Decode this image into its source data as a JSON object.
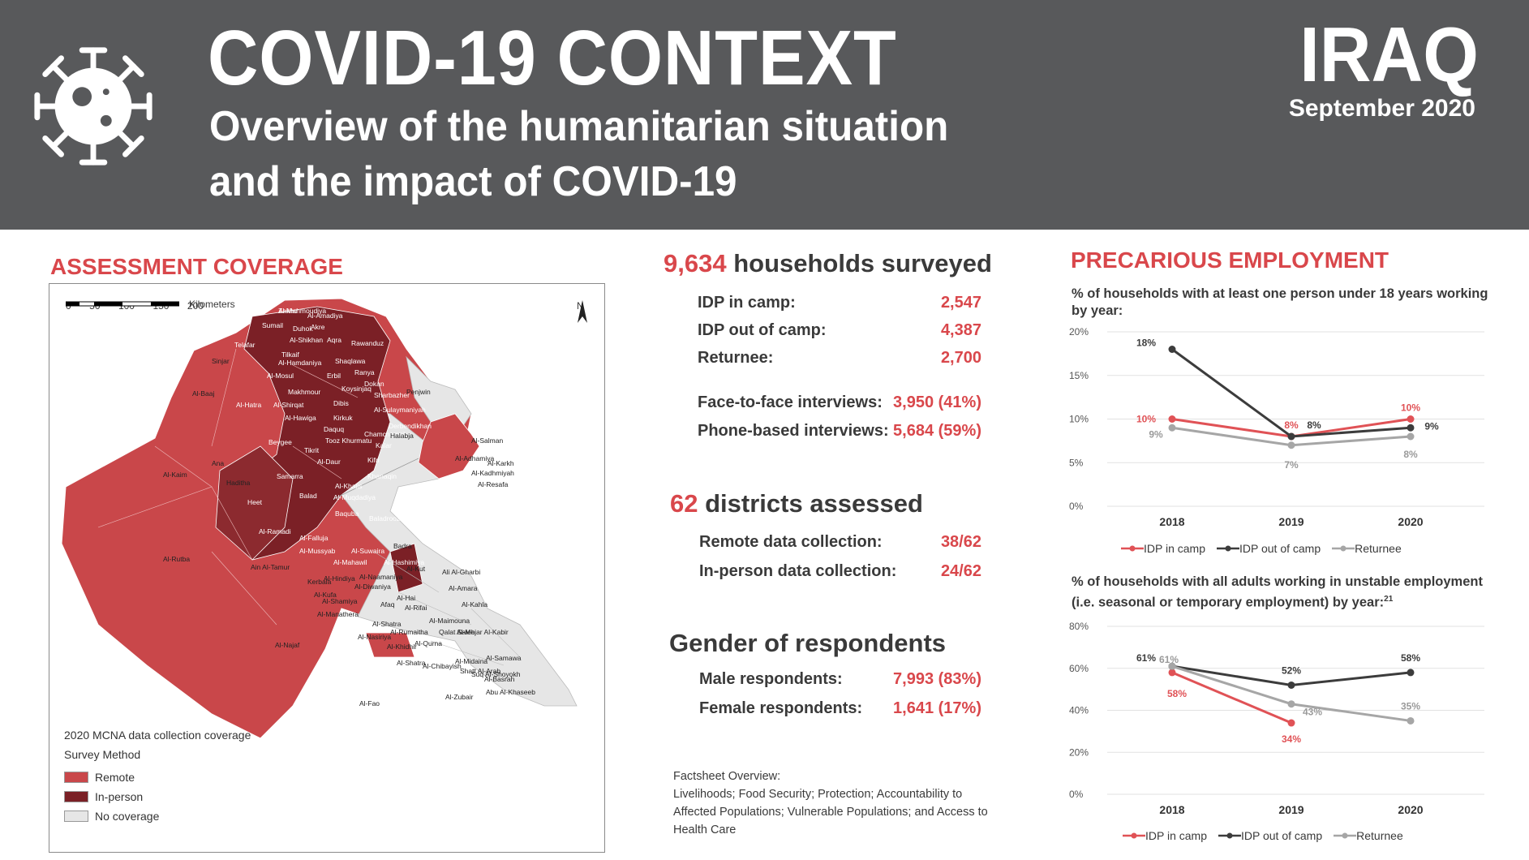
{
  "header": {
    "title": "COVID-19 CONTEXT",
    "subtitle_line1": "Overview of the humanitarian situation",
    "subtitle_line2": "and the impact of COVID-19",
    "country": "IRAQ",
    "date": "September 2020"
  },
  "colors": {
    "header_bg": "#58595b",
    "accent": "#d9474b",
    "remote": "#c9474a",
    "in_person": "#7b2026",
    "no_coverage": "#e6e6e6"
  },
  "assessment": {
    "title": "ASSESSMENT COVERAGE",
    "scale_label": "Kilometers",
    "scale_ticks": [
      "0",
      "50",
      "100",
      "150",
      "200"
    ],
    "north_label": "N",
    "legend_title": "2020 MCNA data collection coverage",
    "legend_subtitle": "Survey Method",
    "legend_items": [
      "Remote",
      "In-person",
      "No coverage"
    ],
    "districts": [
      "Zakho",
      "Al-Amadiya",
      "Sumail",
      "Duhok",
      "Al-Shikhan",
      "Aqra",
      "Akre",
      "Rawanduz",
      "Telafar",
      "Tilkaif",
      "Al-Hamdaniya",
      "Shaqlawa",
      "Sinjar",
      "Al-Mosul",
      "Erbil",
      "Ranya",
      "Makhmour",
      "Koysinjaq",
      "Dokan",
      "Al-Baaj",
      "Al-Hatra",
      "Al-Shirqat",
      "Dibis",
      "Sharbazher",
      "Penjwin",
      "Al-Hawiga",
      "Kirkuk",
      "Al-Sulaymaniyah",
      "Daquq",
      "Derbendikhan",
      "Chamchamal",
      "Halabja",
      "Beygee",
      "Tooz Khurmatu",
      "Kalar",
      "Tikrit",
      "Al-Daur",
      "Kifri",
      "Ana",
      "Samarra",
      "Khanaqin",
      "Al-Kaim",
      "Haditha",
      "Al-Khalis",
      "Balad",
      "Al-Muqdadiya",
      "Heet",
      "Baquba",
      "Baladrooz",
      "Al-Ramadi",
      "Al-Falluja",
      "Al-Mussyab",
      "Al-Suwaira",
      "Badra",
      "Al-Rutba",
      "Ain Al-Tamur",
      "Al-Mahawil",
      "Al-Hashimiya",
      "Al-Naamaniya",
      "Al-Kut",
      "Ali Al-Gharbi",
      "Kerbala",
      "Al-Hindiya",
      "Al-Diwaniya",
      "Al-Hai",
      "Al-Amara",
      "Al-Kufa",
      "Al-Shamiya",
      "Afaq",
      "Al-Rifai",
      "Al-Kahla",
      "Al-Manathera",
      "Al-Shatra",
      "Al-Maimouna",
      "Qalat Saleh",
      "Al-Mejar Al-Kabir",
      "Al-Najaf",
      "Al-Rumaitha",
      "Al-Nasiriya",
      "Al-Qurna",
      "Al-Samawa",
      "Al-Khidhir",
      "Al-Chibayish",
      "Al-Midaina",
      "Al-Shatra",
      "Suq Al-Shoyokh",
      "Shatt Al-Arab",
      "Al-Basrah",
      "Abu Al-Khaseeb",
      "Al-Zubair",
      "Al-Fao",
      "Al-Salman",
      "Al-Adhamiya",
      "Al-Kadhmiyah",
      "Al-Karkh",
      "Al-Resafa",
      "Al-Mahmoudiya"
    ]
  },
  "surveyed": {
    "count": "9,634",
    "label": "households surveyed",
    "rows": [
      {
        "label": "IDP in camp:",
        "value": "2,547"
      },
      {
        "label": "IDP out of camp:",
        "value": "4,387"
      },
      {
        "label": "Returnee:",
        "value": "2,700"
      }
    ],
    "interviews": [
      {
        "label": "Face-to-face interviews:",
        "value": "3,950 (41%)"
      },
      {
        "label": "Phone-based interviews:",
        "value": "5,684 (59%)"
      }
    ]
  },
  "districts_assessed": {
    "count": "62",
    "label": "districts assessed",
    "rows": [
      {
        "label": "Remote data collection:",
        "value": "38/62"
      },
      {
        "label": "In-person data collection:",
        "value": "24/62"
      }
    ]
  },
  "gender": {
    "title": "Gender of respondents",
    "rows": [
      {
        "label": "Male respondents:",
        "value": "7,993 (83%)"
      },
      {
        "label": "Female respondents:",
        "value": "1,641 (17%)"
      }
    ]
  },
  "factsheet": {
    "title": "Factsheet Overview:",
    "text": "Livelihoods; Food Security; Protection; Accountability to Affected Populations; Vulnerable Populations; and Access to Health Care"
  },
  "employment": {
    "title": "PRECARIOUS EMPLOYMENT",
    "chart1_caption": "% of households with at least one person under 18 years working by year:",
    "chart2_caption": "% of households with all adults working in unstable employment (i.e. seasonal or temporary employment) by year:",
    "chart2_footnote": "21"
  },
  "chart_data": [
    {
      "type": "line",
      "title": "% of households with at least one person under 18 years working by year:",
      "x": [
        "2018",
        "2019",
        "2020"
      ],
      "ylim": [
        0,
        20
      ],
      "yticks": [
        "0%",
        "5%",
        "10%",
        "15%",
        "20%"
      ],
      "grid": true,
      "legend": "bottom",
      "series": [
        {
          "name": "IDP in camp",
          "color": "#e05256",
          "values": [
            10,
            8,
            10
          ],
          "labels": [
            "10%",
            "8%",
            "10%"
          ]
        },
        {
          "name": "IDP out of camp",
          "color": "#3c3c3c",
          "values": [
            18,
            8,
            9
          ],
          "labels": [
            "18%",
            "8%",
            "9%"
          ]
        },
        {
          "name": "Returnee",
          "color": "#a6a6a6",
          "values": [
            9,
            7,
            8
          ],
          "labels": [
            "9%",
            "7%",
            "8%"
          ]
        }
      ]
    },
    {
      "type": "line",
      "title": "% of households with all adults working in unstable employment (i.e. seasonal or temporary employment) by year:",
      "x": [
        "2018",
        "2019",
        "2020"
      ],
      "ylim": [
        0,
        80
      ],
      "yticks": [
        "0%",
        "20%",
        "40%",
        "60%",
        "80%"
      ],
      "grid": true,
      "legend": "bottom",
      "series": [
        {
          "name": "IDP in camp",
          "color": "#e05256",
          "values": [
            58,
            34,
            null
          ],
          "labels": [
            "58%",
            "34%",
            ""
          ]
        },
        {
          "name": "IDP out of camp",
          "color": "#3c3c3c",
          "values": [
            61,
            52,
            58
          ],
          "labels": [
            "61%",
            "52%",
            "58%"
          ]
        },
        {
          "name": "Returnee",
          "color": "#a6a6a6",
          "values": [
            61,
            43,
            35
          ],
          "labels": [
            "61%",
            "43%",
            "35%"
          ]
        }
      ]
    }
  ]
}
